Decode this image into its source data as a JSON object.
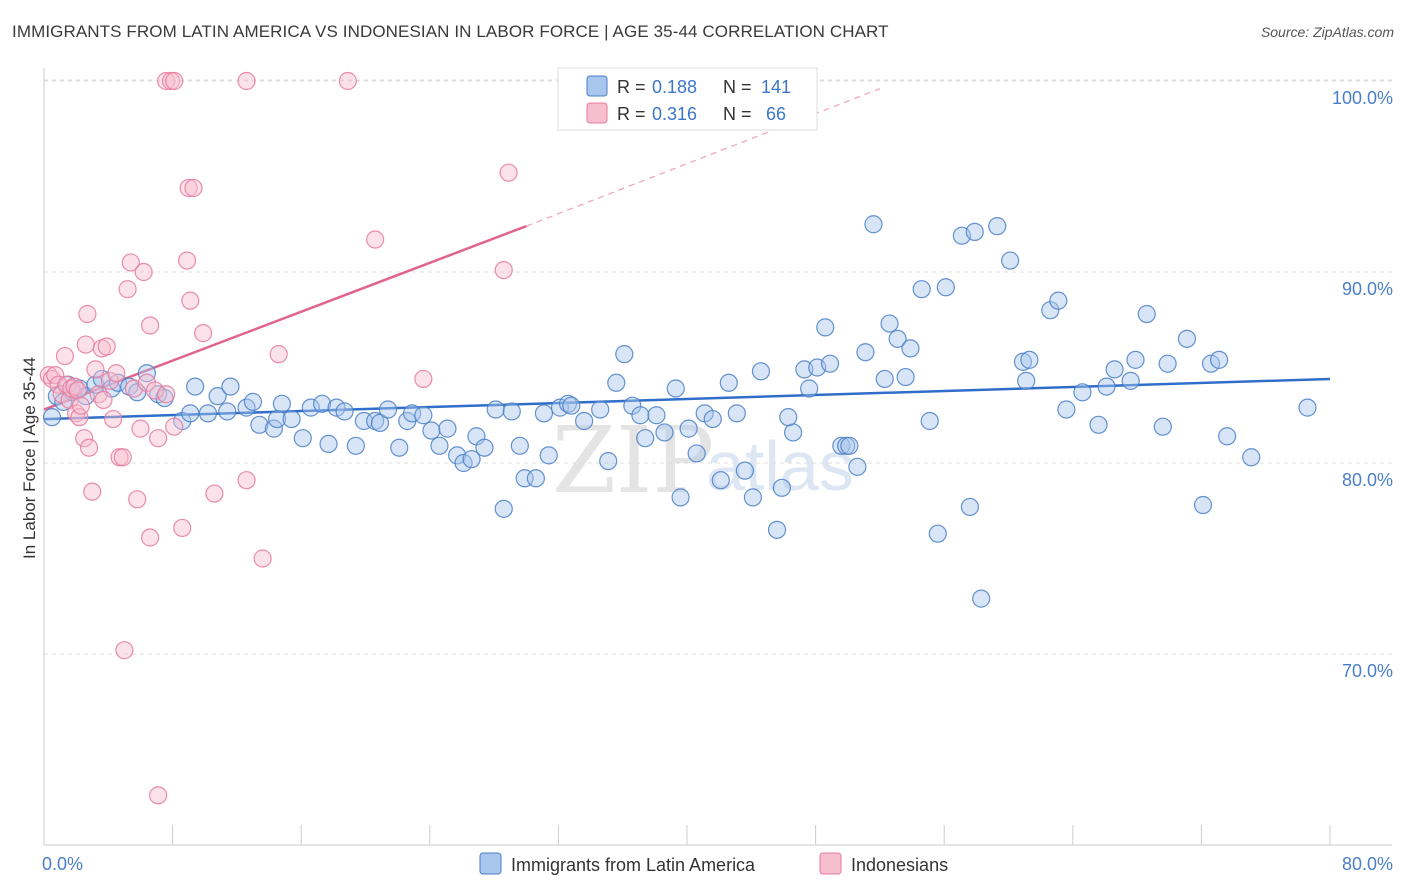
{
  "title": "IMMIGRANTS FROM LATIN AMERICA VS INDONESIAN IN LABOR FORCE | AGE 35-44 CORRELATION CHART",
  "source": "Source: ZipAtlas.com",
  "watermark": {
    "zip": "ZIP",
    "atlas": "atlas"
  },
  "colors": {
    "blue": "#4a7fc8",
    "blue_fill": "#a9c6ec",
    "blue_line": "#2f6fc9",
    "pink": "#e8799c",
    "pink_fill": "#f6bfd0",
    "pink_line": "#e0648e",
    "grid": "#dddddd",
    "axis_text": "#4a7fc8"
  },
  "legend": {
    "rows": [
      {
        "r_label": "R =",
        "r_value": "0.188",
        "n_label": "N =",
        "n_value": "141"
      },
      {
        "r_label": "R =",
        "r_value": "0.316",
        "n_label": "N =",
        "n_value": "66"
      }
    ]
  },
  "bottom_legend": [
    "Immigrants from Latin America",
    "Indonesians"
  ],
  "chart_data": {
    "type": "scatter",
    "title": "IMMIGRANTS FROM LATIN AMERICA VS INDONESIAN IN LABOR FORCE | AGE 35-44 CORRELATION CHART",
    "ylabel": "In Labor Force | Age 35-44",
    "xlim": [
      0,
      80
    ],
    "ylim": [
      60,
      102
    ],
    "x_ticks": [
      "0.0%",
      "80.0%"
    ],
    "y_ticks": [
      {
        "value": 70,
        "label": "70.0%"
      },
      {
        "value": 80,
        "label": "80.0%"
      },
      {
        "value": 90,
        "label": "90.0%"
      },
      {
        "value": 100,
        "label": "100.0%"
      }
    ],
    "grid": true,
    "legend_position": "top-center",
    "series": [
      {
        "name": "Immigrants from Latin America",
        "color": "#4a7fc8",
        "r": 0.188,
        "n": 141,
        "trend": {
          "x0": 0,
          "y0": 82.3,
          "x1": 80,
          "y1": 84.4
        },
        "points": [
          [
            0.5,
            82.4
          ],
          [
            0.8,
            83.5
          ],
          [
            1.2,
            83.2
          ],
          [
            1.5,
            84.1
          ],
          [
            1.8,
            83.7
          ],
          [
            2.2,
            83.9
          ],
          [
            2.6,
            83.5
          ],
          [
            3.2,
            84.1
          ],
          [
            3.6,
            84.4
          ],
          [
            4.2,
            83.9
          ],
          [
            4.6,
            84.2
          ],
          [
            5.3,
            84.0
          ],
          [
            5.8,
            83.7
          ],
          [
            6.4,
            84.7
          ],
          [
            7.1,
            83.6
          ],
          [
            7.5,
            83.4
          ],
          [
            8.6,
            82.2
          ],
          [
            9.1,
            82.6
          ],
          [
            9.4,
            84.0
          ],
          [
            10.2,
            82.6
          ],
          [
            10.8,
            83.5
          ],
          [
            11.4,
            82.7
          ],
          [
            11.6,
            84.0
          ],
          [
            12.6,
            82.9
          ],
          [
            13.0,
            83.2
          ],
          [
            13.4,
            82.0
          ],
          [
            14.3,
            81.8
          ],
          [
            14.8,
            83.1
          ],
          [
            14.5,
            82.3
          ],
          [
            15.4,
            82.3
          ],
          [
            16.1,
            81.3
          ],
          [
            16.6,
            82.9
          ],
          [
            17.3,
            83.1
          ],
          [
            17.7,
            81.0
          ],
          [
            18.2,
            82.9
          ],
          [
            18.7,
            82.7
          ],
          [
            19.4,
            80.9
          ],
          [
            19.9,
            82.2
          ],
          [
            20.6,
            82.2
          ],
          [
            20.9,
            82.1
          ],
          [
            21.4,
            82.8
          ],
          [
            22.1,
            80.8
          ],
          [
            22.6,
            82.2
          ],
          [
            22.9,
            82.6
          ],
          [
            23.6,
            82.5
          ],
          [
            24.1,
            81.7
          ],
          [
            24.6,
            80.9
          ],
          [
            25.1,
            81.8
          ],
          [
            25.7,
            80.4
          ],
          [
            26.1,
            80.0
          ],
          [
            26.6,
            80.2
          ],
          [
            26.9,
            81.4
          ],
          [
            27.4,
            80.8
          ],
          [
            28.1,
            82.8
          ],
          [
            28.6,
            77.6
          ],
          [
            29.1,
            82.7
          ],
          [
            29.6,
            80.9
          ],
          [
            29.9,
            79.2
          ],
          [
            30.6,
            79.2
          ],
          [
            31.1,
            82.6
          ],
          [
            31.4,
            80.4
          ],
          [
            32.1,
            82.9
          ],
          [
            32.6,
            83.1
          ],
          [
            32.8,
            83.0
          ],
          [
            33.6,
            82.2
          ],
          [
            34.6,
            82.8
          ],
          [
            35.1,
            80.1
          ],
          [
            35.6,
            84.2
          ],
          [
            36.1,
            85.7
          ],
          [
            36.6,
            83.0
          ],
          [
            37.1,
            82.5
          ],
          [
            37.4,
            81.3
          ],
          [
            38.1,
            82.5
          ],
          [
            38.6,
            81.6
          ],
          [
            39.3,
            83.9
          ],
          [
            39.6,
            78.2
          ],
          [
            40.1,
            81.8
          ],
          [
            40.6,
            80.5
          ],
          [
            41.1,
            82.6
          ],
          [
            41.6,
            82.3
          ],
          [
            42.1,
            79.1
          ],
          [
            42.6,
            84.2
          ],
          [
            43.1,
            82.6
          ],
          [
            43.6,
            79.6
          ],
          [
            44.1,
            78.2
          ],
          [
            44.6,
            84.8
          ],
          [
            45.6,
            76.5
          ],
          [
            45.9,
            78.7
          ],
          [
            46.6,
            81.6
          ],
          [
            46.3,
            82.4
          ],
          [
            47.3,
            84.9
          ],
          [
            47.6,
            83.9
          ],
          [
            48.1,
            85.0
          ],
          [
            48.6,
            87.1
          ],
          [
            48.9,
            85.2
          ],
          [
            49.6,
            80.9
          ],
          [
            49.9,
            80.9
          ],
          [
            50.1,
            80.9
          ],
          [
            50.6,
            79.8
          ],
          [
            51.1,
            85.8
          ],
          [
            51.6,
            92.5
          ],
          [
            52.3,
            84.4
          ],
          [
            52.6,
            87.3
          ],
          [
            53.1,
            86.5
          ],
          [
            53.6,
            84.5
          ],
          [
            53.9,
            86.0
          ],
          [
            54.6,
            89.1
          ],
          [
            55.1,
            82.2
          ],
          [
            55.6,
            76.3
          ],
          [
            56.1,
            89.2
          ],
          [
            57.1,
            91.9
          ],
          [
            57.6,
            77.7
          ],
          [
            57.9,
            92.1
          ],
          [
            58.3,
            72.9
          ],
          [
            59.3,
            92.4
          ],
          [
            60.1,
            90.6
          ],
          [
            60.9,
            85.3
          ],
          [
            61.1,
            84.3
          ],
          [
            61.3,
            85.4
          ],
          [
            62.6,
            88.0
          ],
          [
            63.1,
            88.5
          ],
          [
            63.6,
            82.8
          ],
          [
            64.6,
            83.7
          ],
          [
            65.6,
            82.0
          ],
          [
            66.1,
            84.0
          ],
          [
            66.6,
            84.9
          ],
          [
            67.6,
            84.3
          ],
          [
            67.9,
            85.4
          ],
          [
            68.6,
            87.8
          ],
          [
            69.6,
            81.9
          ],
          [
            69.9,
            85.2
          ],
          [
            71.1,
            86.5
          ],
          [
            72.1,
            77.8
          ],
          [
            72.6,
            85.2
          ],
          [
            73.1,
            85.4
          ],
          [
            73.6,
            81.4
          ],
          [
            75.1,
            80.3
          ],
          [
            78.6,
            82.9
          ]
        ]
      },
      {
        "name": "Indonesians",
        "color": "#e8799c",
        "r": 0.316,
        "n": 66,
        "trend": {
          "x0": 0,
          "y0": 82.8,
          "x1": 30,
          "y1": 92.4
        },
        "trend_dashed": {
          "x0": 30,
          "y0": 92.4,
          "x1": 52,
          "y1": 99.6
        },
        "points": [
          [
            0.3,
            84.6
          ],
          [
            0.5,
            84.4
          ],
          [
            0.7,
            84.6
          ],
          [
            0.9,
            84.1
          ],
          [
            1.1,
            83.6
          ],
          [
            1.3,
            85.6
          ],
          [
            1.4,
            84.1
          ],
          [
            1.6,
            83.3
          ],
          [
            1.7,
            83.9
          ],
          [
            1.9,
            84.0
          ],
          [
            2.0,
            82.6
          ],
          [
            2.1,
            83.8
          ],
          [
            2.2,
            82.4
          ],
          [
            2.3,
            83.0
          ],
          [
            2.5,
            81.3
          ],
          [
            2.6,
            86.2
          ],
          [
            2.7,
            87.8
          ],
          [
            2.8,
            80.8
          ],
          [
            3.0,
            78.5
          ],
          [
            3.2,
            84.9
          ],
          [
            3.4,
            83.6
          ],
          [
            3.6,
            86.0
          ],
          [
            3.7,
            83.3
          ],
          [
            3.9,
            86.1
          ],
          [
            4.1,
            84.3
          ],
          [
            4.3,
            82.3
          ],
          [
            4.5,
            84.7
          ],
          [
            4.7,
            80.3
          ],
          [
            4.9,
            80.3
          ],
          [
            5.0,
            70.2
          ],
          [
            5.2,
            89.1
          ],
          [
            5.4,
            90.5
          ],
          [
            5.6,
            83.9
          ],
          [
            5.8,
            78.1
          ],
          [
            6.0,
            81.8
          ],
          [
            6.2,
            90.0
          ],
          [
            6.4,
            84.2
          ],
          [
            6.6,
            87.2
          ],
          [
            6.6,
            76.1
          ],
          [
            6.9,
            83.8
          ],
          [
            7.1,
            81.3
          ],
          [
            7.1,
            62.6
          ],
          [
            7.6,
            83.6
          ],
          [
            7.6,
            100.0
          ],
          [
            7.9,
            100.0
          ],
          [
            8.1,
            100.0
          ],
          [
            8.1,
            81.9
          ],
          [
            8.6,
            76.6
          ],
          [
            8.9,
            90.6
          ],
          [
            9.1,
            88.5
          ],
          [
            9.0,
            94.4
          ],
          [
            9.3,
            94.4
          ],
          [
            9.9,
            86.8
          ],
          [
            10.6,
            78.4
          ],
          [
            12.6,
            100.0
          ],
          [
            12.6,
            79.1
          ],
          [
            13.6,
            75.0
          ],
          [
            14.6,
            85.7
          ],
          [
            18.9,
            100.0
          ],
          [
            20.6,
            91.7
          ],
          [
            23.6,
            84.4
          ],
          [
            28.6,
            90.1
          ],
          [
            28.9,
            95.2
          ]
        ]
      }
    ]
  }
}
